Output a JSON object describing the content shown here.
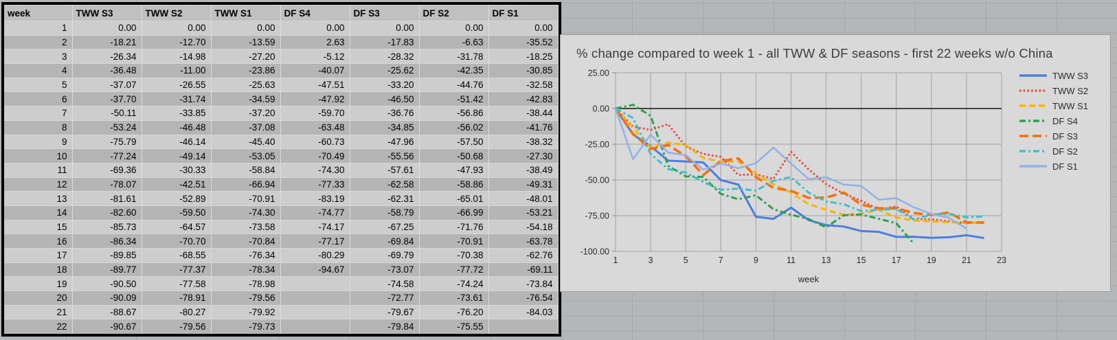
{
  "app": {
    "sheet_background": "#b4b6b8",
    "sheet_gridline": "#a6a8aa",
    "chart_background": "#d9d9d9",
    "table_band_light": "#cdcdcd",
    "table_band_dark": "#b5b5b5",
    "table_header_fill": "#c0c0c0"
  },
  "table": {
    "headers": [
      "week",
      "TWW S3",
      "TWW S2",
      "TWW S1",
      "DF S4",
      "DF S3",
      "DF S2",
      "DF S1"
    ],
    "rows": [
      [
        "1",
        "0.00",
        "0.00",
        "0.00",
        "0.00",
        "0.00",
        "0.00",
        "0.00"
      ],
      [
        "2",
        "-18.21",
        "-12.70",
        "-13.59",
        "2.63",
        "-17.83",
        "-6.63",
        "-35.52"
      ],
      [
        "3",
        "-26.34",
        "-14.98",
        "-27.20",
        "-5.12",
        "-28.32",
        "-31.78",
        "-18.25"
      ],
      [
        "4",
        "-36.48",
        "-11.00",
        "-23.86",
        "-40.07",
        "-25.62",
        "-42.35",
        "-30.85"
      ],
      [
        "5",
        "-37.07",
        "-26.55",
        "-25.63",
        "-47.51",
        "-33.20",
        "-44.76",
        "-32.58"
      ],
      [
        "6",
        "-37.70",
        "-31.74",
        "-34.59",
        "-47.92",
        "-46.50",
        "-51.42",
        "-42.83"
      ],
      [
        "7",
        "-50.11",
        "-33.85",
        "-37.20",
        "-59.70",
        "-36.76",
        "-56.86",
        "-38.44"
      ],
      [
        "8",
        "-53.24",
        "-46.48",
        "-37.08",
        "-63.48",
        "-34.85",
        "-56.02",
        "-41.76"
      ],
      [
        "9",
        "-75.79",
        "-46.14",
        "-45.40",
        "-60.73",
        "-47.96",
        "-57.50",
        "-38.32"
      ],
      [
        "10",
        "-77.24",
        "-49.14",
        "-53.05",
        "-70.49",
        "-55.56",
        "-50.68",
        "-27.30"
      ],
      [
        "11",
        "-69.36",
        "-30.33",
        "-58.84",
        "-74.30",
        "-57.61",
        "-47.93",
        "-38.49"
      ],
      [
        "12",
        "-78.07",
        "-42.51",
        "-66.94",
        "-77.33",
        "-62.58",
        "-58.86",
        "-49.31"
      ],
      [
        "13",
        "-81.61",
        "-52.89",
        "-70.91",
        "-83.19",
        "-62.31",
        "-65.01",
        "-48.01"
      ],
      [
        "14",
        "-82.60",
        "-59.50",
        "-74.30",
        "-74.77",
        "-58.79",
        "-66.99",
        "-53.21"
      ],
      [
        "15",
        "-85.73",
        "-64.57",
        "-73.58",
        "-74.17",
        "-67.25",
        "-71.76",
        "-54.18"
      ],
      [
        "16",
        "-86.34",
        "-70.70",
        "-70.84",
        "-77.17",
        "-69.84",
        "-70.91",
        "-63.78"
      ],
      [
        "17",
        "-89.85",
        "-68.55",
        "-76.34",
        "-80.29",
        "-69.79",
        "-70.38",
        "-62.76"
      ],
      [
        "18",
        "-89.77",
        "-77.37",
        "-78.34",
        "-94.67",
        "-73.07",
        "-77.72",
        "-69.11"
      ],
      [
        "19",
        "-90.50",
        "-77.58",
        "-78.98",
        "",
        "-74.58",
        "-74.24",
        "-73.84"
      ],
      [
        "20",
        "-90.09",
        "-78.91",
        "-79.56",
        "",
        "-72.77",
        "-73.61",
        "-76.54"
      ],
      [
        "21",
        "-88.67",
        "-80.27",
        "-79.92",
        "",
        "-79.67",
        "-76.20",
        "-84.03"
      ],
      [
        "22",
        "-90.67",
        "-79.56",
        "-79.73",
        "",
        "-79.84",
        "-75.55",
        ""
      ]
    ]
  },
  "chart": {
    "title": "% change compared to week 1 - all TWW & DF seasons - first 22 weeks w/o China",
    "x_axis_title": "week",
    "y_ticks": [
      "25.00",
      "0.00",
      "-25.00",
      "-50.00",
      "-75.00",
      "-100.00"
    ],
    "x_ticks": [
      "1",
      "3",
      "5",
      "7",
      "9",
      "11",
      "13",
      "15",
      "17",
      "19",
      "21",
      "23"
    ]
  },
  "chart_data": {
    "type": "line",
    "title": "% change compared to week 1 - all TWW & DF seasons - first 22 weeks w/o China",
    "xlabel": "week",
    "ylabel": "",
    "xlim": [
      1,
      23
    ],
    "ylim": [
      -100,
      25
    ],
    "y_major_unit": 25,
    "grid": true,
    "legend_position": "right",
    "x": [
      1,
      2,
      3,
      4,
      5,
      6,
      7,
      8,
      9,
      10,
      11,
      12,
      13,
      14,
      15,
      16,
      17,
      18,
      19,
      20,
      21,
      22
    ],
    "series": [
      {
        "name": "TWW S3",
        "color": "#4a7ede",
        "style": "solid",
        "width": 3,
        "values": [
          0,
          -18.21,
          -26.34,
          -36.48,
          -37.07,
          -37.7,
          -50.11,
          -53.24,
          -75.79,
          -77.24,
          -69.36,
          -78.07,
          -81.61,
          -82.6,
          -85.73,
          -86.34,
          -89.85,
          -89.77,
          -90.5,
          -90.09,
          -88.67,
          -90.67
        ]
      },
      {
        "name": "TWW S2",
        "color": "#ea4a3d",
        "style": "dotted",
        "width": 3,
        "values": [
          0,
          -12.7,
          -14.98,
          -11.0,
          -26.55,
          -31.74,
          -33.85,
          -46.48,
          -46.14,
          -49.14,
          -30.33,
          -42.51,
          -52.89,
          -59.5,
          -64.57,
          -70.7,
          -68.55,
          -77.37,
          -77.58,
          -78.91,
          -80.27,
          -79.56
        ]
      },
      {
        "name": "TWW S1",
        "color": "#f7b500",
        "style": "dashed",
        "width": 3,
        "values": [
          0,
          -13.59,
          -27.2,
          -23.86,
          -25.63,
          -34.59,
          -37.2,
          -37.08,
          -45.4,
          -53.05,
          -58.84,
          -66.94,
          -70.91,
          -74.3,
          -73.58,
          -70.84,
          -76.34,
          -78.34,
          -78.98,
          -79.56,
          -79.92,
          -79.73
        ]
      },
      {
        "name": "DF S4",
        "color": "#2ea052",
        "style": "dash-dot",
        "width": 3,
        "values": [
          0,
          2.63,
          -5.12,
          -40.07,
          -47.51,
          -47.92,
          -59.7,
          -63.48,
          -60.73,
          -70.49,
          -74.3,
          -77.33,
          -83.19,
          -74.77,
          -74.17,
          -77.17,
          -80.29,
          -94.67,
          null,
          null,
          null,
          null
        ]
      },
      {
        "name": "DF S3",
        "color": "#fa6e0a",
        "style": "long-dash",
        "width": 3.5,
        "values": [
          0,
          -17.83,
          -28.32,
          -25.62,
          -33.2,
          -46.5,
          -36.76,
          -34.85,
          -47.96,
          -55.56,
          -57.61,
          -62.58,
          -62.31,
          -58.79,
          -67.25,
          -69.84,
          -69.79,
          -73.07,
          -74.58,
          -72.77,
          -79.67,
          -79.84
        ]
      },
      {
        "name": "DF S2",
        "color": "#43bfc7",
        "style": "dash-dot",
        "width": 3,
        "values": [
          0,
          -6.63,
          -31.78,
          -42.35,
          -44.76,
          -51.42,
          -56.86,
          -56.02,
          -57.5,
          -50.68,
          -47.93,
          -58.86,
          -65.01,
          -66.99,
          -71.76,
          -70.91,
          -70.38,
          -77.72,
          -74.24,
          -73.61,
          -76.2,
          -75.55
        ]
      },
      {
        "name": "DF S1",
        "color": "#92b1e8",
        "style": "solid",
        "width": 2.5,
        "values": [
          0,
          -35.52,
          -18.25,
          -30.85,
          -32.58,
          -42.83,
          -38.44,
          -41.76,
          -38.32,
          -27.3,
          -38.49,
          -49.31,
          -48.01,
          -53.21,
          -54.18,
          -63.78,
          -62.76,
          -69.11,
          -73.84,
          -76.54,
          -84.03,
          null
        ]
      }
    ]
  }
}
